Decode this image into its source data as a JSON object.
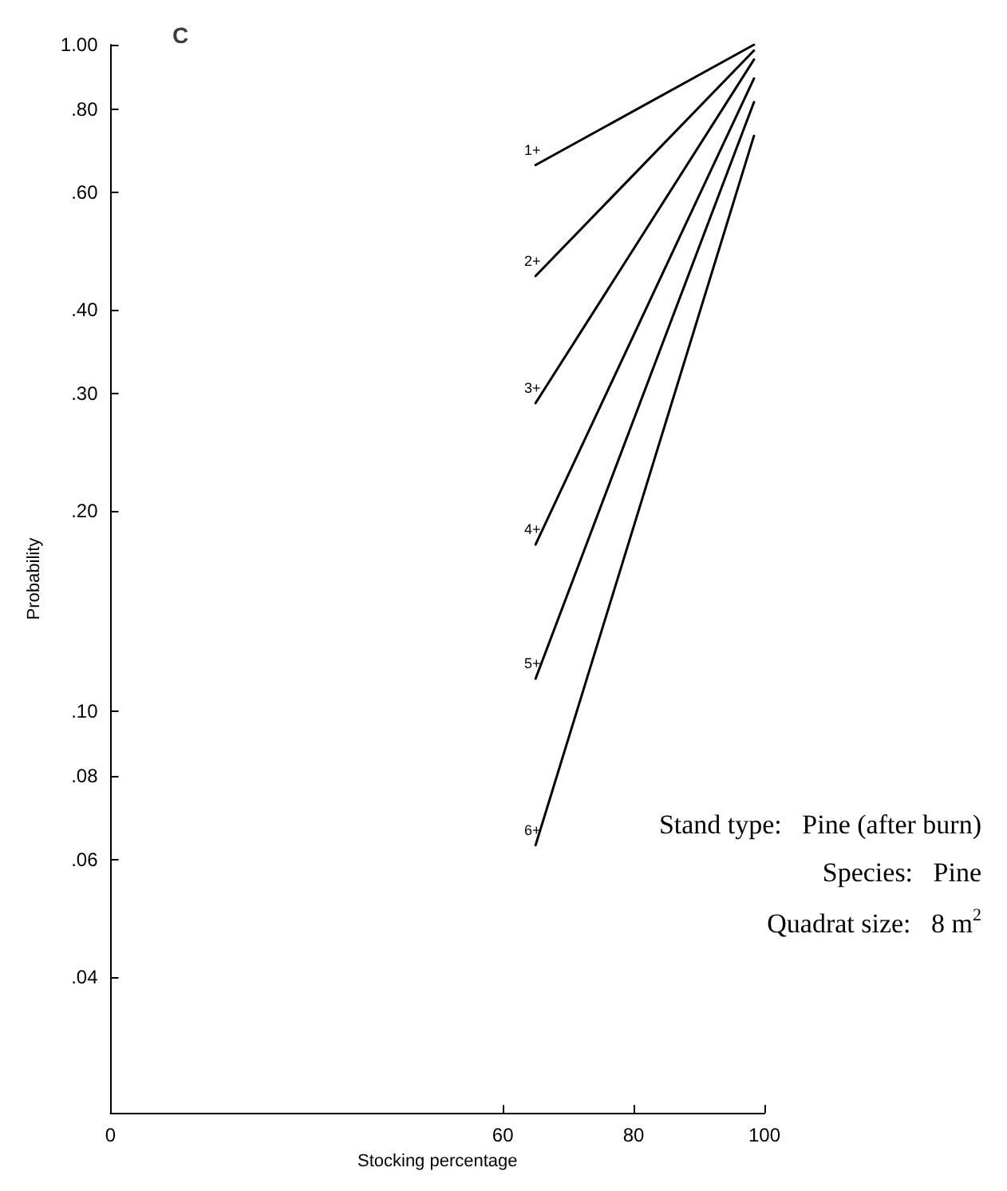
{
  "chart_data": {
    "type": "line",
    "title": "C",
    "xlabel": "Stocking percentage",
    "ylabel": "Probability",
    "log": "y",
    "xlim": [
      0,
      100
    ],
    "xticks": [
      0,
      60,
      80,
      100
    ],
    "ylim": [
      0.025,
      1
    ],
    "yticks": [
      {
        "value": 0.04,
        "label": ".04"
      },
      {
        "value": 0.06,
        "label": ".06"
      },
      {
        "value": 0.08,
        "label": ".08"
      },
      {
        "value": 0.1,
        "label": ".10"
      },
      {
        "value": 0.2,
        "label": ".20"
      },
      {
        "value": 0.3,
        "label": ".30"
      },
      {
        "value": 0.4,
        "label": ".40"
      },
      {
        "value": 0.6,
        "label": ".60"
      },
      {
        "value": 0.8,
        "label": ".80"
      },
      {
        "value": 1,
        "label": "1.00"
      }
    ],
    "grid": false,
    "legend": false,
    "marker": "none",
    "line_style": "solid",
    "x": [
      65,
      98.4
    ],
    "series": [
      {
        "name": "1+",
        "color": "#000000",
        "values": [
          0.66,
          1.0
        ]
      },
      {
        "name": "2+",
        "color": "#000000",
        "values": [
          0.45,
          0.98
        ]
      },
      {
        "name": "3+",
        "color": "#000000",
        "values": [
          0.29,
          0.95
        ]
      },
      {
        "name": "4+",
        "color": "#000000",
        "values": [
          0.178,
          0.89
        ]
      },
      {
        "name": "5+",
        "color": "#000000",
        "values": [
          0.112,
          0.82
        ]
      },
      {
        "name": "6+",
        "color": "#000000",
        "values": [
          0.063,
          0.73
        ]
      }
    ],
    "annotations": [
      "Stand type:   Pine (after burn)",
      "Species:   Pine",
      "Quadrat size:   8 m$^{2}$"
    ]
  }
}
